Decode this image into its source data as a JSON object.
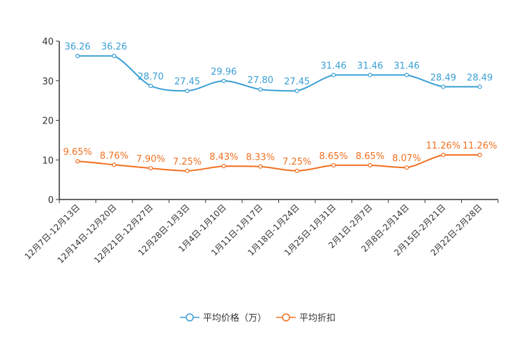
{
  "chart_data": {
    "type": "line",
    "title": "",
    "xlabel": "",
    "ylabel": "",
    "ylim": [
      0,
      40
    ],
    "yticks": [
      0,
      10,
      20,
      30,
      40
    ],
    "categories": [
      "12月7日-12月13日",
      "12月14日-12月20日",
      "12月21日-12月27日",
      "12月28日-1月3日",
      "1月4日-1月10日",
      "1月11日-1月17日",
      "1月18日-1月24日",
      "1月25日-1月31日",
      "2月1日-2月7日",
      "2月8日-2月14日",
      "2月15日-2月21日",
      "2月22日-2月28日"
    ],
    "series": [
      {
        "name": "平均价格（万）",
        "color": "#3a9fd4",
        "values": [
          36.26,
          36.26,
          28.7,
          27.45,
          29.96,
          27.8,
          27.45,
          31.46,
          31.46,
          31.46,
          28.49,
          28.49
        ],
        "labels": [
          "36.26",
          "36.26",
          "28.70",
          "27.45",
          "29.96",
          "27.80",
          "27.45",
          "31.46",
          "31.46",
          "31.46",
          "28.49",
          "28.49"
        ]
      },
      {
        "name": "平均折扣",
        "color": "#f07020",
        "values": [
          9.65,
          8.76,
          7.9,
          7.25,
          8.43,
          8.33,
          7.25,
          8.65,
          8.65,
          8.07,
          11.26,
          11.26
        ],
        "labels": [
          "9.65%",
          "8.76%",
          "7.90%",
          "7.25%",
          "8.43%",
          "8.33%",
          "7.25%",
          "8.65%",
          "8.65%",
          "8.07%",
          "11.26%",
          "11.26%"
        ]
      }
    ],
    "legend": {
      "position": "bottom-center",
      "entries": [
        "平均价格（万）",
        "平均折扣"
      ]
    },
    "grid": false
  }
}
